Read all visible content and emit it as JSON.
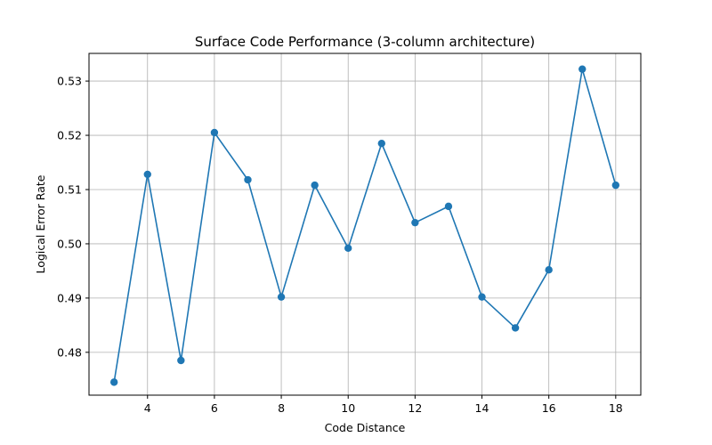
{
  "chart_data": {
    "type": "line",
    "title": "Surface Code Performance (3-column architecture)",
    "xlabel": "Code Distance",
    "ylabel": "Logical Error Rate",
    "x": [
      3,
      4,
      5,
      6,
      7,
      8,
      9,
      10,
      11,
      12,
      13,
      14,
      15,
      16,
      17,
      18
    ],
    "series": [
      {
        "values": [
          0.4745,
          0.5128,
          0.4785,
          0.5205,
          0.5118,
          0.4902,
          0.5108,
          0.4992,
          0.5185,
          0.5039,
          0.5069,
          0.4902,
          0.4845,
          0.4952,
          0.5322,
          0.5108
        ],
        "color": "#1f77b4"
      }
    ],
    "xlim": [
      2.25,
      18.75
    ],
    "ylim": [
      0.4721,
      0.5351
    ],
    "xticks": [
      4,
      6,
      8,
      10,
      12,
      14,
      16,
      18
    ],
    "yticks": [
      0.48,
      0.49,
      0.5,
      0.51,
      0.52,
      0.53
    ],
    "ytick_labels": [
      "0.48",
      "0.49",
      "0.50",
      "0.51",
      "0.52",
      "0.53"
    ],
    "grid": true,
    "marker": "circle"
  }
}
